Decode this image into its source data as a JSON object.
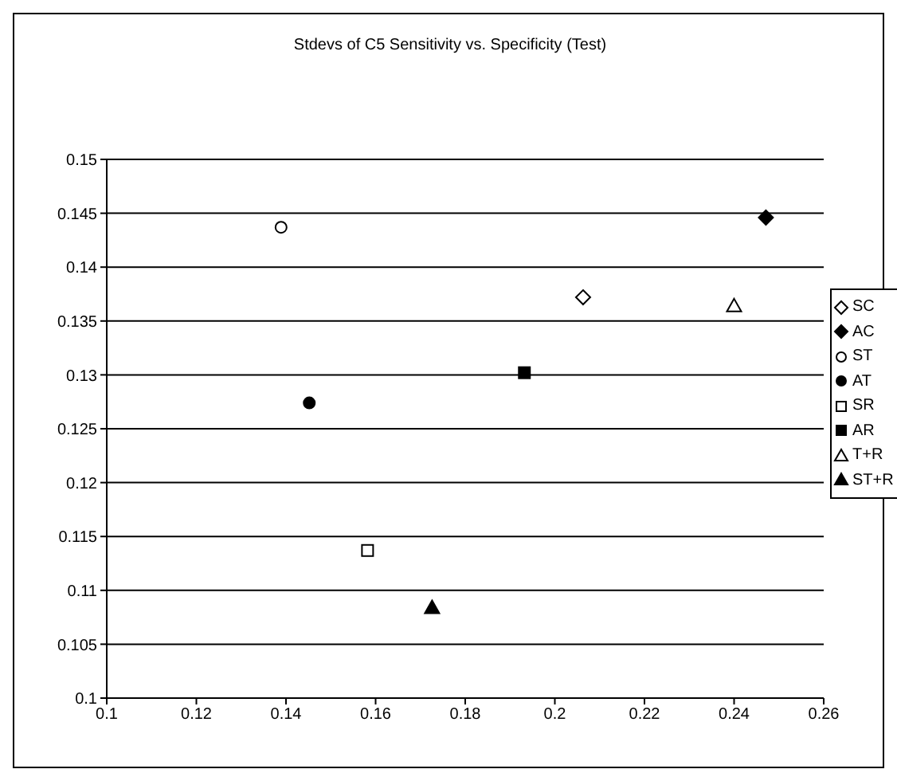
{
  "chart_data": {
    "type": "scatter",
    "title": "Stdevs of C5 Sensitivity  vs. Specificity (Test)",
    "xlim": [
      0.1,
      0.26
    ],
    "xticks": [
      0.1,
      0.12,
      0.14,
      0.16,
      0.18,
      0.2,
      0.22,
      0.24,
      0.26
    ],
    "ylim": [
      0.1,
      0.15
    ],
    "yticks": [
      0.1,
      0.105,
      0.11,
      0.115,
      0.12,
      0.125,
      0.13,
      0.135,
      0.14,
      0.145,
      0.15
    ],
    "grid": "y",
    "legend": "right",
    "series": [
      {
        "name": "SC",
        "color": "#000000",
        "marker": "diamond",
        "x": [
          0.2063
        ],
        "values": [
          0.1372
        ]
      },
      {
        "name": "AC",
        "color": "#000000",
        "marker": "diamond",
        "x": [
          0.2471
        ],
        "values": [
          0.1446
        ]
      },
      {
        "name": "ST",
        "color": "#000000",
        "marker": "circle",
        "x": [
          0.1389
        ],
        "values": [
          0.1437
        ]
      },
      {
        "name": "AT",
        "color": "#000000",
        "marker": "circle",
        "x": [
          0.1452
        ],
        "values": [
          0.1274
        ]
      },
      {
        "name": "SR",
        "color": "#000000",
        "marker": "square",
        "x": [
          0.1582
        ],
        "values": [
          0.1137
        ]
      },
      {
        "name": "AR",
        "color": "#000000",
        "marker": "square",
        "x": [
          0.1932
        ],
        "values": [
          0.1302
        ]
      },
      {
        "name": "T+R",
        "color": "#000000",
        "marker": "triangle",
        "x": [
          0.24
        ],
        "values": [
          0.1364
        ]
      },
      {
        "name": "ST+R",
        "color": "#000000",
        "marker": "triangle",
        "x": [
          0.1726
        ],
        "values": [
          0.1084
        ]
      }
    ]
  }
}
